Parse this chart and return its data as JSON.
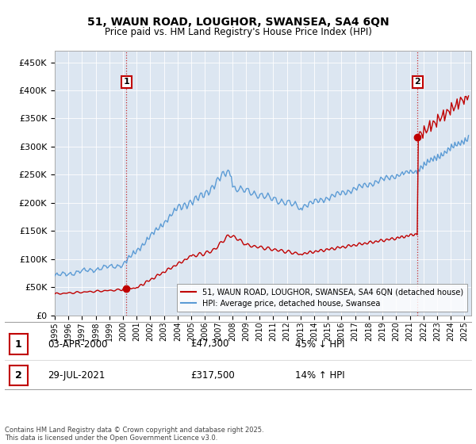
{
  "title": "51, WAUN ROAD, LOUGHOR, SWANSEA, SA4 6QN",
  "subtitle": "Price paid vs. HM Land Registry's House Price Index (HPI)",
  "ylabel_ticks": [
    "£0",
    "£50K",
    "£100K",
    "£150K",
    "£200K",
    "£250K",
    "£300K",
    "£350K",
    "£400K",
    "£450K"
  ],
  "ytick_values": [
    0,
    50000,
    100000,
    150000,
    200000,
    250000,
    300000,
    350000,
    400000,
    450000
  ],
  "ylim": [
    0,
    470000
  ],
  "xlim_start": 1995.0,
  "xlim_end": 2025.5,
  "sale1_date": 2000.25,
  "sale1_price": 47300,
  "sale1_label": "1",
  "sale2_date": 2021.57,
  "sale2_price": 317500,
  "sale2_label": "2",
  "hpi_color": "#5B9BD5",
  "price_color": "#C00000",
  "vline_color": "#C00000",
  "background_color": "#ffffff",
  "plot_bg_color": "#DCE6F1",
  "legend_label_price": "51, WAUN ROAD, LOUGHOR, SWANSEA, SA4 6QN (detached house)",
  "legend_label_hpi": "HPI: Average price, detached house, Swansea",
  "footer_line1": "Contains HM Land Registry data © Crown copyright and database right 2025.",
  "footer_line2": "This data is licensed under the Open Government Licence v3.0.",
  "table_row1": [
    "1",
    "03-APR-2000",
    "£47,300",
    "45% ↓ HPI"
  ],
  "table_row2": [
    "2",
    "29-JUL-2021",
    "£317,500",
    "14% ↑ HPI"
  ]
}
